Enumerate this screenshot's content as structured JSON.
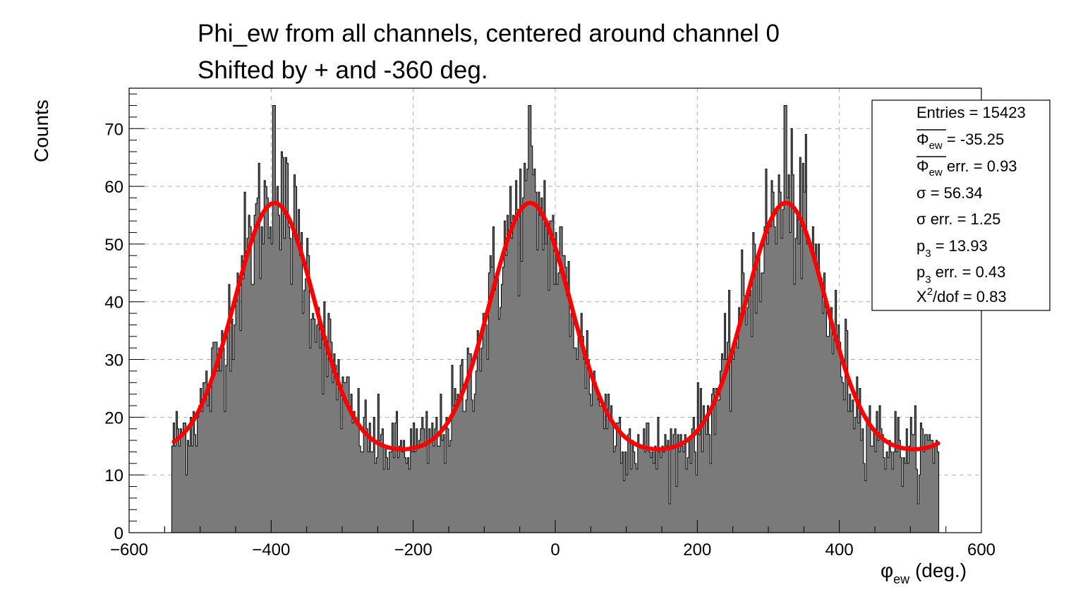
{
  "title_line_1": "Phi_ew from all channels, centered around channel 0",
  "title_line_2": "Shifted by + and -360 deg.",
  "colors": {
    "histogram_fill": "#7a7a7a",
    "histogram_line": "#000000",
    "fit": "#ff0000",
    "grid": "#b0b0b0"
  },
  "stats": {
    "entries": "Entries = 15423",
    "mean_symbol": "Φ",
    "mean_sub": "ew",
    "mean_value": " = -35.25",
    "mean_err_value": " err. = 0.93",
    "sigma": "σ = 56.34",
    "sigma_err": "σ err. = 1.25",
    "p3_symbol": "p",
    "p3_sub": "3",
    "p3_value": " = 13.93",
    "p3_err_value": " err. = 0.43",
    "chi_symbol": "X",
    "chi_sup": "2",
    "chi_value": "/dof = 0.83"
  },
  "chart_data": {
    "type": "bar",
    "title": "Phi_ew from all channels, centered around channel 0 / Shifted by + and -360 deg.",
    "xlabel_symbol": "φ",
    "xlabel_sub": "ew",
    "xlabel_rest": " (deg.)",
    "ylabel": "Counts",
    "xlim": [
      -600,
      600
    ],
    "ylim": [
      0,
      77
    ],
    "x_ticks": [
      "−600",
      "−400",
      "−200",
      "0",
      "200",
      "400",
      "600"
    ],
    "x_tick_values": [
      -600,
      -400,
      -200,
      0,
      200,
      400,
      600
    ],
    "y_ticks": [
      "0",
      "10",
      "20",
      "30",
      "40",
      "50",
      "60",
      "70"
    ],
    "y_tick_values": [
      0,
      10,
      20,
      30,
      40,
      50,
      60,
      70
    ],
    "grid": true,
    "legend_position": "top-right",
    "histogram": {
      "name": "Phi_ew",
      "x_start": -540,
      "bin_width": 2,
      "fit_params": {
        "constant": 43.2,
        "mean": -35.25,
        "sigma": 56.34,
        "p3": 13.93,
        "period": 360
      },
      "peak_spikes": [
        -396,
        -36,
        324
      ]
    },
    "fit_curve": {
      "name": "fit",
      "x_range": [
        -537,
        540
      ],
      "mean": -35.25,
      "sigma": 56.34,
      "p3": 13.93,
      "amplitude": 43.2,
      "period": 360
    }
  }
}
